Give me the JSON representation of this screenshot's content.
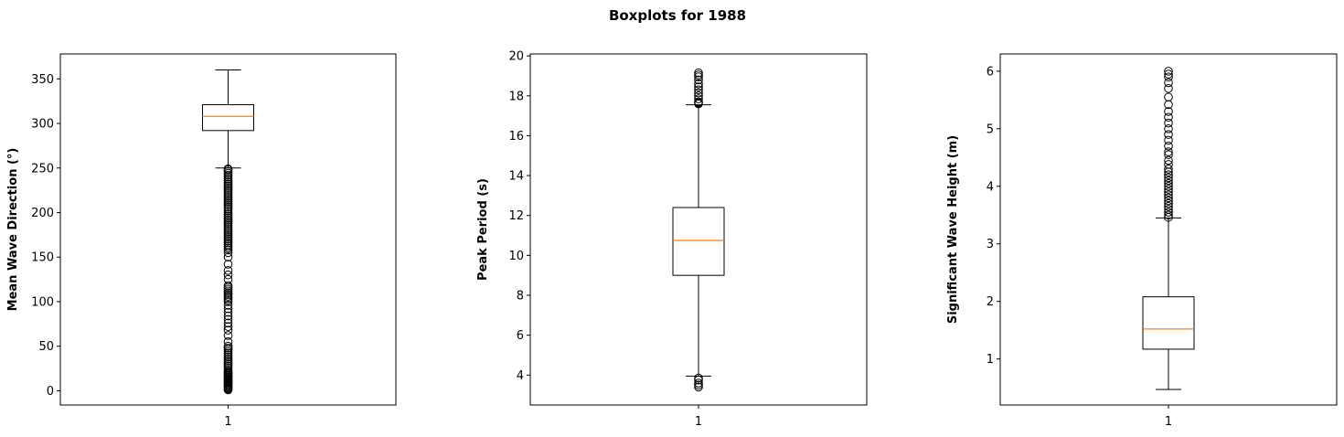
{
  "title": "Boxplots for 1988",
  "colors": {
    "box": "#000000",
    "median": "#ff7f0e",
    "outlier": "#000000"
  },
  "chart_data": [
    {
      "type": "boxplot",
      "ylabel": "Mean Wave Direction (°)",
      "categories": [
        "1"
      ],
      "ylim": [
        -16,
        378
      ],
      "yticks": [
        0,
        50,
        100,
        150,
        200,
        250,
        300,
        350
      ],
      "box": {
        "whislo": 250,
        "q1": 292,
        "med": 308,
        "q3": 321,
        "whishi": 360
      },
      "fliers": [
        1,
        2,
        3,
        4,
        5,
        6,
        7,
        8,
        9,
        10,
        11,
        12,
        13,
        14,
        15,
        16,
        17,
        18,
        19,
        20,
        21,
        22,
        24,
        26,
        28,
        30,
        32,
        34,
        36,
        38,
        40,
        42,
        44,
        46,
        48,
        50,
        55,
        62,
        68,
        72,
        76,
        80,
        84,
        88,
        92,
        96,
        100,
        102,
        104,
        106,
        108,
        110,
        112,
        114,
        116,
        118,
        125,
        130,
        135,
        142,
        150,
        155,
        158,
        160,
        162,
        164,
        166,
        168,
        170,
        172,
        174,
        176,
        178,
        180,
        182,
        184,
        186,
        188,
        190,
        192,
        194,
        196,
        198,
        200,
        202,
        204,
        206,
        208,
        210,
        212,
        214,
        216,
        218,
        220,
        222,
        224,
        226,
        228,
        230,
        232,
        234,
        236,
        238,
        240,
        242,
        244,
        246,
        248,
        249
      ]
    },
    {
      "type": "boxplot",
      "ylabel": "Peak Period (s)",
      "categories": [
        "1"
      ],
      "ylim": [
        2.5,
        20.1
      ],
      "yticks": [
        4,
        6,
        8,
        10,
        12,
        14,
        16,
        18,
        20
      ],
      "box": {
        "whislo": 3.95,
        "q1": 9.0,
        "med": 10.75,
        "q3": 12.4,
        "whishi": 17.55
      },
      "fliers": [
        3.4,
        3.5,
        3.6,
        3.75,
        3.85,
        17.6,
        17.65,
        17.7,
        17.85,
        18.0,
        18.15,
        18.3,
        18.45,
        18.6,
        18.8,
        18.95,
        19.05,
        19.15
      ]
    },
    {
      "type": "boxplot",
      "ylabel": "Significant Wave Height (m)",
      "categories": [
        "1"
      ],
      "ylim": [
        0.2,
        6.3
      ],
      "yticks": [
        1,
        2,
        3,
        4,
        5,
        6
      ],
      "box": {
        "whislo": 0.47,
        "q1": 1.17,
        "med": 1.52,
        "q3": 2.08,
        "whishi": 3.45
      },
      "fliers": [
        3.46,
        3.5,
        3.55,
        3.6,
        3.65,
        3.7,
        3.75,
        3.8,
        3.85,
        3.9,
        3.95,
        4.0,
        4.05,
        4.1,
        4.15,
        4.2,
        4.25,
        4.3,
        4.38,
        4.45,
        4.55,
        4.6,
        4.7,
        4.8,
        4.9,
        5.0,
        5.1,
        5.2,
        5.3,
        5.42,
        5.55,
        5.7,
        5.8,
        5.9,
        5.95,
        6.0
      ]
    }
  ]
}
